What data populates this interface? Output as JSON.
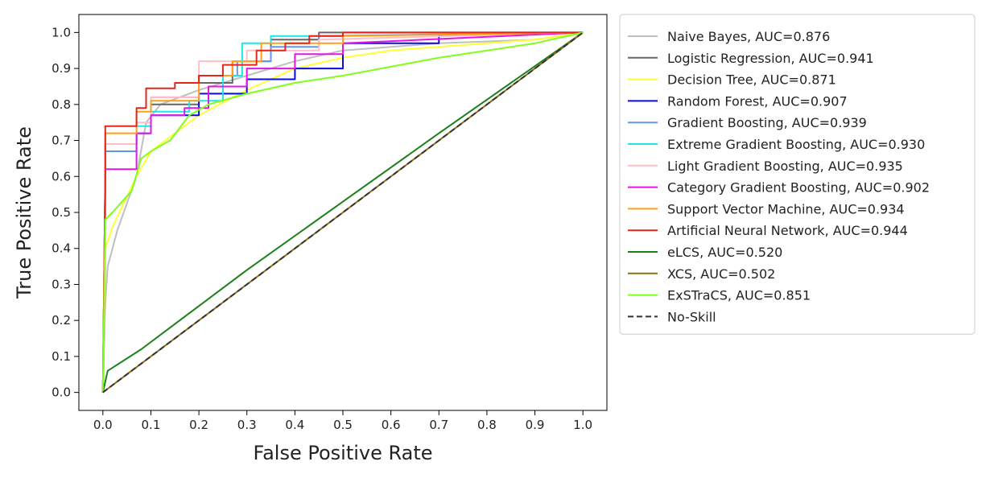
{
  "chart_data": {
    "type": "line",
    "title": "",
    "xlabel": "False Positive Rate",
    "ylabel": "True Positive Rate",
    "xlim": [
      -0.05,
      1.05
    ],
    "ylim": [
      -0.05,
      1.05
    ],
    "xticks": [
      "0.0",
      "0.1",
      "0.2",
      "0.3",
      "0.4",
      "0.5",
      "0.6",
      "0.7",
      "0.8",
      "0.9",
      "1.0"
    ],
    "yticks": [
      "0.0",
      "0.1",
      "0.2",
      "0.3",
      "0.4",
      "0.5",
      "0.6",
      "0.7",
      "0.8",
      "0.9",
      "1.0"
    ],
    "grid": false,
    "legend_position": "outside-right",
    "series": [
      {
        "name": "Naive Bayes, AUC=0.876",
        "color": "#bfbfbf",
        "dash": false,
        "x": [
          0,
          0.005,
          0.01,
          0.03,
          0.07,
          0.09,
          0.12,
          0.2,
          0.3,
          0.4,
          0.5,
          0.7,
          0.9,
          1.0
        ],
        "y": [
          0,
          0.25,
          0.35,
          0.45,
          0.6,
          0.75,
          0.8,
          0.84,
          0.88,
          0.92,
          0.95,
          0.97,
          0.98,
          1.0
        ]
      },
      {
        "name": "Logistic Regression, AUC=0.941",
        "color": "#666666",
        "dash": false,
        "x": [
          0,
          0.005,
          0.005,
          0.07,
          0.07,
          0.1,
          0.1,
          0.2,
          0.2,
          0.27,
          0.27,
          0.35,
          0.35,
          0.45,
          0.45,
          1.0
        ],
        "y": [
          0,
          0.6,
          0.69,
          0.69,
          0.72,
          0.72,
          0.8,
          0.8,
          0.86,
          0.86,
          0.92,
          0.92,
          0.98,
          0.98,
          1.0,
          1.0
        ]
      },
      {
        "name": "Decision Tree, AUC=0.871",
        "color": "#ffff33",
        "dash": false,
        "x": [
          0,
          0.005,
          0.02,
          0.07,
          0.1,
          0.15,
          0.2,
          0.3,
          0.4,
          0.5,
          0.6,
          0.8,
          0.9,
          1.0
        ],
        "y": [
          0,
          0.4,
          0.46,
          0.6,
          0.67,
          0.72,
          0.77,
          0.84,
          0.9,
          0.93,
          0.95,
          0.97,
          0.98,
          1.0
        ]
      },
      {
        "name": "Random Forest, AUC=0.907",
        "color": "#0a0ae6",
        "dash": false,
        "x": [
          0,
          0.005,
          0.005,
          0.07,
          0.07,
          0.1,
          0.1,
          0.2,
          0.2,
          0.3,
          0.3,
          0.4,
          0.4,
          0.5,
          0.5,
          0.7,
          0.7,
          1.0
        ],
        "y": [
          0,
          0.6,
          0.69,
          0.69,
          0.72,
          0.72,
          0.77,
          0.77,
          0.83,
          0.83,
          0.87,
          0.87,
          0.9,
          0.9,
          0.97,
          0.97,
          0.99,
          1.0
        ]
      },
      {
        "name": "Gradient Boosting, AUC=0.939",
        "color": "#6495ed",
        "dash": false,
        "x": [
          0,
          0.005,
          0.005,
          0.07,
          0.07,
          0.1,
          0.1,
          0.2,
          0.2,
          0.28,
          0.28,
          0.35,
          0.35,
          0.45,
          0.45,
          1.0
        ],
        "y": [
          0,
          0.6,
          0.67,
          0.67,
          0.72,
          0.72,
          0.82,
          0.82,
          0.88,
          0.88,
          0.92,
          0.92,
          0.96,
          0.96,
          0.99,
          1.0
        ]
      },
      {
        "name": "Extreme Gradient Boosting, AUC=0.930",
        "color": "#1ae6e6",
        "dash": false,
        "x": [
          0,
          0.005,
          0.005,
          0.07,
          0.07,
          0.1,
          0.1,
          0.18,
          0.18,
          0.25,
          0.25,
          0.29,
          0.29,
          0.35,
          0.35,
          0.5,
          0.5,
          1.0
        ],
        "y": [
          0,
          0.6,
          0.69,
          0.69,
          0.74,
          0.74,
          0.78,
          0.78,
          0.81,
          0.81,
          0.88,
          0.88,
          0.97,
          0.97,
          0.99,
          0.99,
          1.0,
          1.0
        ]
      },
      {
        "name": "Light Gradient Boosting, AUC=0.935",
        "color": "#ffbfc8",
        "dash": false,
        "x": [
          0,
          0.005,
          0.005,
          0.07,
          0.07,
          0.1,
          0.1,
          0.2,
          0.2,
          0.3,
          0.3,
          0.45,
          0.45,
          1.0
        ],
        "y": [
          0,
          0.6,
          0.69,
          0.69,
          0.75,
          0.75,
          0.82,
          0.82,
          0.92,
          0.92,
          0.95,
          0.95,
          0.98,
          1.0
        ]
      },
      {
        "name": "Category Gradient Boosting, AUC=0.902",
        "color": "#e615e6",
        "dash": false,
        "x": [
          0,
          0.005,
          0.005,
          0.07,
          0.07,
          0.1,
          0.1,
          0.17,
          0.17,
          0.22,
          0.22,
          0.3,
          0.3,
          0.4,
          0.4,
          0.5,
          0.5,
          1.0
        ],
        "y": [
          0,
          0.5,
          0.62,
          0.62,
          0.72,
          0.72,
          0.77,
          0.77,
          0.79,
          0.79,
          0.85,
          0.85,
          0.9,
          0.9,
          0.94,
          0.94,
          0.97,
          1.0
        ]
      },
      {
        "name": "Support Vector Machine, AUC=0.934",
        "color": "#ff9f1a",
        "dash": false,
        "x": [
          0,
          0.005,
          0.005,
          0.07,
          0.07,
          0.1,
          0.1,
          0.2,
          0.2,
          0.27,
          0.27,
          0.33,
          0.33,
          0.5,
          0.5,
          1.0
        ],
        "y": [
          0,
          0.6,
          0.72,
          0.72,
          0.78,
          0.78,
          0.81,
          0.81,
          0.88,
          0.88,
          0.92,
          0.92,
          0.97,
          0.97,
          0.99,
          1.0
        ]
      },
      {
        "name": "Artificial Neural Network, AUC=0.944",
        "color": "#e6251a",
        "dash": false,
        "x": [
          0,
          0.005,
          0.005,
          0.07,
          0.07,
          0.09,
          0.09,
          0.15,
          0.15,
          0.2,
          0.2,
          0.25,
          0.25,
          0.32,
          0.32,
          0.38,
          0.38,
          0.43,
          0.43,
          0.5,
          0.5,
          1.0
        ],
        "y": [
          0,
          0.6,
          0.74,
          0.74,
          0.79,
          0.79,
          0.845,
          0.845,
          0.86,
          0.86,
          0.88,
          0.88,
          0.91,
          0.91,
          0.95,
          0.95,
          0.97,
          0.97,
          0.99,
          0.99,
          1.0,
          1.0
        ]
      },
      {
        "name": "eLCS, AUC=0.520",
        "color": "#1a801a",
        "dash": false,
        "x": [
          0,
          0.01,
          0.08,
          0.16,
          0.3,
          0.5,
          0.7,
          1.0
        ],
        "y": [
          0,
          0.06,
          0.12,
          0.2,
          0.34,
          0.53,
          0.72,
          1.0
        ]
      },
      {
        "name": "XCS, AUC=0.502",
        "color": "#8b7010",
        "dash": false,
        "x": [
          0,
          1.0
        ],
        "y": [
          0,
          1.0
        ]
      },
      {
        "name": "ExSTraCS, AUC=0.851",
        "color": "#7fff1a",
        "dash": false,
        "x": [
          0,
          0.005,
          0.02,
          0.06,
          0.08,
          0.1,
          0.14,
          0.18,
          0.22,
          0.3,
          0.4,
          0.5,
          0.7,
          0.9,
          1.0
        ],
        "y": [
          0,
          0.48,
          0.5,
          0.56,
          0.65,
          0.67,
          0.7,
          0.77,
          0.8,
          0.83,
          0.86,
          0.88,
          0.93,
          0.97,
          1.0
        ]
      },
      {
        "name": "No-Skill",
        "color": "#333333",
        "dash": true,
        "x": [
          0,
          1.0
        ],
        "y": [
          0,
          1.0
        ]
      }
    ]
  }
}
